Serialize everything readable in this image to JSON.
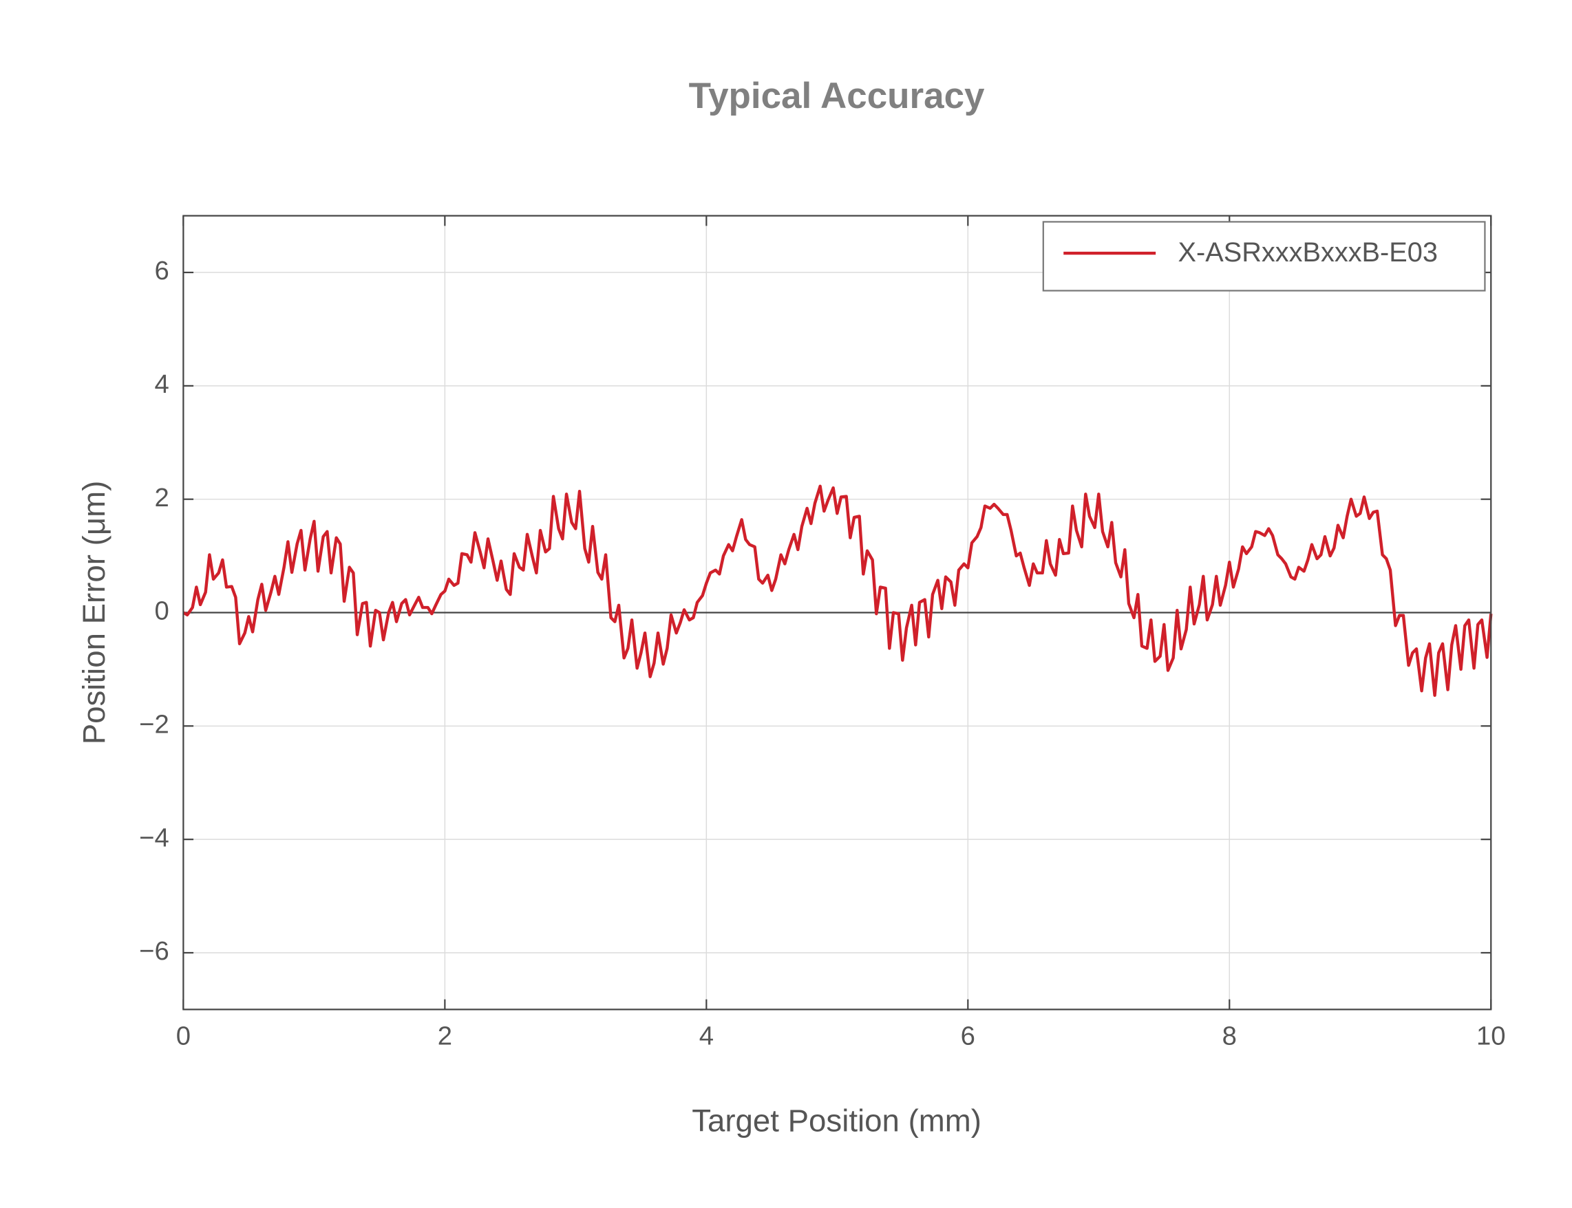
{
  "chart_data": {
    "type": "line",
    "title": "Typical Accuracy",
    "xlabel": "Target Position (mm)",
    "ylabel": "Position Error (μm)",
    "x": [
      0,
      0.03,
      0.07,
      0.1,
      0.13,
      0.17,
      0.2,
      0.23,
      0.27,
      0.3,
      0.33,
      0.37,
      0.4,
      0.43,
      0.47,
      0.5,
      0.53,
      0.57,
      0.6,
      0.63,
      0.67,
      0.7,
      0.73,
      0.77,
      0.8,
      0.83,
      0.87,
      0.9,
      0.93,
      0.97,
      1,
      1.03,
      1.07,
      1.1,
      1.13,
      1.17,
      1.2,
      1.23,
      1.27,
      1.3,
      1.33,
      1.37,
      1.4,
      1.43,
      1.47,
      1.5,
      1.53,
      1.57,
      1.6,
      1.63,
      1.67,
      1.7,
      1.73,
      1.77,
      1.8,
      1.83,
      1.87,
      1.9,
      1.93,
      1.97,
      2,
      2.03,
      2.07,
      2.1,
      2.13,
      2.17,
      2.2,
      2.23,
      2.27,
      2.3,
      2.33,
      2.37,
      2.4,
      2.43,
      2.47,
      2.5,
      2.53,
      2.57,
      2.6,
      2.63,
      2.67,
      2.7,
      2.73,
      2.77,
      2.8,
      2.83,
      2.87,
      2.9,
      2.93,
      2.97,
      3,
      3.03,
      3.07,
      3.1,
      3.13,
      3.17,
      3.2,
      3.23,
      3.27,
      3.3,
      3.33,
      3.37,
      3.4,
      3.43,
      3.47,
      3.5,
      3.53,
      3.57,
      3.6,
      3.63,
      3.67,
      3.7,
      3.73,
      3.77,
      3.8,
      3.83,
      3.87,
      3.9,
      3.93,
      3.97,
      4,
      4.03,
      4.07,
      4.1,
      4.13,
      4.17,
      4.2,
      4.23,
      4.27,
      4.3,
      4.33,
      4.37,
      4.4,
      4.43,
      4.47,
      4.5,
      4.53,
      4.57,
      4.6,
      4.63,
      4.67,
      4.7,
      4.73,
      4.77,
      4.8,
      4.83,
      4.87,
      4.9,
      4.93,
      4.97,
      5,
      5.03,
      5.07,
      5.1,
      5.13,
      5.17,
      5.2,
      5.23,
      5.27,
      5.3,
      5.33,
      5.37,
      5.4,
      5.43,
      5.47,
      5.5,
      5.53,
      5.57,
      5.6,
      5.63,
      5.67,
      5.7,
      5.73,
      5.77,
      5.8,
      5.83,
      5.87,
      5.9,
      5.93,
      5.97,
      6,
      6.03,
      6.07,
      6.1,
      6.13,
      6.17,
      6.2,
      6.23,
      6.27,
      6.3,
      6.33,
      6.37,
      6.4,
      6.43,
      6.47,
      6.5,
      6.53,
      6.57,
      6.6,
      6.63,
      6.67,
      6.7,
      6.73,
      6.77,
      6.8,
      6.83,
      6.87,
      6.9,
      6.93,
      6.97,
      7,
      7.03,
      7.07,
      7.1,
      7.13,
      7.17,
      7.2,
      7.23,
      7.27,
      7.3,
      7.33,
      7.37,
      7.4,
      7.43,
      7.47,
      7.5,
      7.53,
      7.57,
      7.6,
      7.63,
      7.67,
      7.7,
      7.73,
      7.77,
      7.8,
      7.83,
      7.87,
      7.9,
      7.93,
      7.97,
      8,
      8.03,
      8.07,
      8.1,
      8.13,
      8.17,
      8.2,
      8.23,
      8.27,
      8.3,
      8.33,
      8.37,
      8.4,
      8.43,
      8.47,
      8.5,
      8.53,
      8.57,
      8.6,
      8.63,
      8.67,
      8.7,
      8.73,
      8.77,
      8.8,
      8.83,
      8.87,
      8.9,
      8.93,
      8.97,
      9,
      9.03,
      9.07,
      9.1,
      9.13,
      9.17,
      9.2,
      9.23,
      9.27,
      9.3,
      9.33,
      9.37,
      9.4,
      9.43,
      9.47,
      9.5,
      9.53,
      9.57,
      9.6,
      9.63,
      9.67,
      9.7,
      9.73,
      9.77,
      9.8,
      9.83,
      9.87,
      9.9,
      9.93,
      9.97,
      10
    ],
    "series": [
      {
        "name": "X-ASRxxxBxxxB-E03",
        "color": "#d0202a",
        "values": [
          0,
          -0.04,
          0.09,
          0.45,
          0.14,
          0.36,
          1.02,
          0.59,
          0.7,
          0.93,
          0.45,
          0.46,
          0.27,
          -0.55,
          -0.36,
          -0.07,
          -0.34,
          0.23,
          0.5,
          0.04,
          0.36,
          0.64,
          0.32,
          0.8,
          1.25,
          0.71,
          1.21,
          1.45,
          0.75,
          1.3,
          1.61,
          0.73,
          1.34,
          1.43,
          0.7,
          1.32,
          1.21,
          0.2,
          0.8,
          0.7,
          -0.39,
          0.16,
          0.18,
          -0.59,
          0.04,
          0,
          -0.48,
          0,
          0.18,
          -0.16,
          0.16,
          0.23,
          -0.04,
          0.14,
          0.27,
          0.09,
          0.09,
          -0.02,
          0.13,
          0.32,
          0.38,
          0.59,
          0.48,
          0.52,
          1.04,
          1.02,
          0.89,
          1.41,
          1.07,
          0.79,
          1.3,
          0.89,
          0.57,
          0.91,
          0.41,
          0.32,
          1.04,
          0.8,
          0.75,
          1.38,
          0.98,
          0.7,
          1.45,
          1.07,
          1.13,
          2.05,
          1.48,
          1.3,
          2.09,
          1.59,
          1.48,
          2.14,
          1.13,
          0.89,
          1.52,
          0.71,
          0.59,
          1.02,
          -0.09,
          -0.16,
          0.13,
          -0.8,
          -0.63,
          -0.13,
          -0.98,
          -0.71,
          -0.36,
          -1.13,
          -0.89,
          -0.36,
          -0.91,
          -0.63,
          -0.04,
          -0.36,
          -0.18,
          0.05,
          -0.13,
          -0.09,
          0.18,
          0.3,
          0.52,
          0.7,
          0.75,
          0.68,
          1.0,
          1.2,
          1.09,
          1.34,
          1.64,
          1.29,
          1.2,
          1.16,
          0.59,
          0.52,
          0.66,
          0.39,
          0.59,
          1.02,
          0.86,
          1.11,
          1.38,
          1.11,
          1.52,
          1.84,
          1.57,
          1.93,
          2.23,
          1.79,
          1.98,
          2.2,
          1.75,
          2.04,
          2.05,
          1.32,
          1.68,
          1.7,
          0.68,
          1.09,
          0.93,
          -0.02,
          0.45,
          0.43,
          -0.63,
          0,
          -0.02,
          -0.84,
          -0.27,
          0.13,
          -0.57,
          0.18,
          0.23,
          -0.43,
          0.32,
          0.57,
          0.07,
          0.63,
          0.54,
          0.13,
          0.75,
          0.86,
          0.79,
          1.23,
          1.34,
          1.5,
          1.88,
          1.84,
          1.91,
          1.84,
          1.73,
          1.73,
          1.45,
          1.0,
          1.05,
          0.79,
          0.48,
          0.86,
          0.7,
          0.7,
          1.27,
          0.86,
          0.66,
          1.29,
          1.04,
          1.05,
          1.88,
          1.45,
          1.16,
          2.09,
          1.7,
          1.5,
          2.09,
          1.43,
          1.16,
          1.59,
          0.88,
          0.63,
          1.11,
          0.16,
          -0.09,
          0.32,
          -0.59,
          -0.63,
          -0.13,
          -0.86,
          -0.77,
          -0.21,
          -1.02,
          -0.8,
          0.04,
          -0.64,
          -0.3,
          0.45,
          -0.2,
          0.14,
          0.64,
          -0.13,
          0.14,
          0.64,
          0.13,
          0.48,
          0.89,
          0.45,
          0.77,
          1.16,
          1.04,
          1.16,
          1.43,
          1.41,
          1.36,
          1.48,
          1.36,
          1.02,
          0.95,
          0.86,
          0.63,
          0.59,
          0.8,
          0.73,
          0.93,
          1.2,
          0.95,
          1.02,
          1.34,
          1.0,
          1.14,
          1.54,
          1.32,
          1.7,
          2.0,
          1.7,
          1.75,
          2.04,
          1.66,
          1.77,
          1.79,
          1.02,
          0.95,
          0.75,
          -0.23,
          -0.05,
          -0.05,
          -0.93,
          -0.71,
          -0.64,
          -1.38,
          -0.8,
          -0.55,
          -1.46,
          -0.71,
          -0.55,
          -1.36,
          -0.57,
          -0.23,
          -1.0,
          -0.23,
          -0.13,
          -0.98,
          -0.21,
          -0.13,
          -0.79,
          -0.02
        ]
      }
    ],
    "xlim": [
      0,
      10
    ],
    "xticks": [
      0,
      2,
      4,
      6,
      8,
      10
    ],
    "ylim": [
      -7,
      7
    ],
    "yticks": [
      {
        "value": -6,
        "label": "−6"
      },
      {
        "value": -4,
        "label": "−4"
      },
      {
        "value": -2,
        "label": "−2"
      },
      0,
      2,
      4,
      6
    ],
    "grid": true,
    "legend": "upper right"
  }
}
